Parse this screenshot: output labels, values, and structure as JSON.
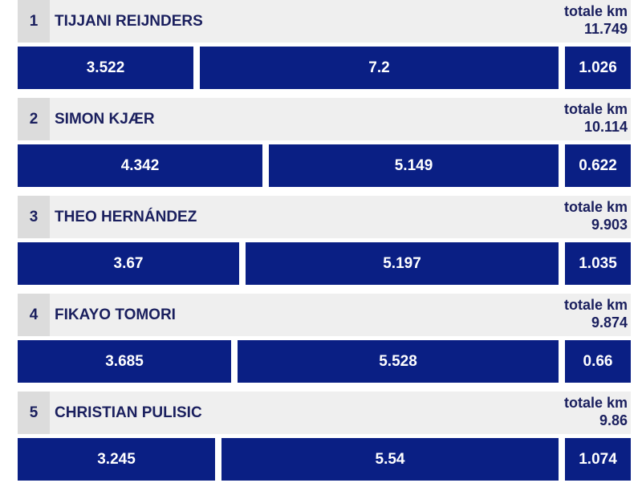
{
  "chart_data": {
    "type": "bar",
    "total_label": "totale km",
    "colors": {
      "bar": "#0a1f84",
      "header": "#efefef",
      "rank_box": "#dcdcdc",
      "text": "#1a1f5e"
    },
    "rows": [
      {
        "rank": "1",
        "name": "TIJJANI REIJNDERS",
        "total": "11.749",
        "values": [
          3.522,
          7.2,
          1.026
        ],
        "labels": [
          "3.522",
          "7.2",
          "1.026"
        ]
      },
      {
        "rank": "2",
        "name": "SIMON KJÆR",
        "total": "10.114",
        "values": [
          4.342,
          5.149,
          0.622
        ],
        "labels": [
          "4.342",
          "5.149",
          "0.622"
        ]
      },
      {
        "rank": "3",
        "name": "THEO HERNÁNDEZ",
        "total": "9.903",
        "values": [
          3.67,
          5.197,
          1.035
        ],
        "labels": [
          "3.67",
          "5.197",
          "1.035"
        ]
      },
      {
        "rank": "4",
        "name": "FIKAYO TOMORI",
        "total": "9.874",
        "values": [
          3.685,
          5.528,
          0.66
        ],
        "labels": [
          "3.685",
          "5.528",
          "0.66"
        ]
      },
      {
        "rank": "5",
        "name": "CHRISTIAN PULISIC",
        "total": "9.86",
        "values": [
          3.245,
          5.54,
          1.074
        ],
        "labels": [
          "3.245",
          "5.54",
          "1.074"
        ]
      }
    ]
  }
}
